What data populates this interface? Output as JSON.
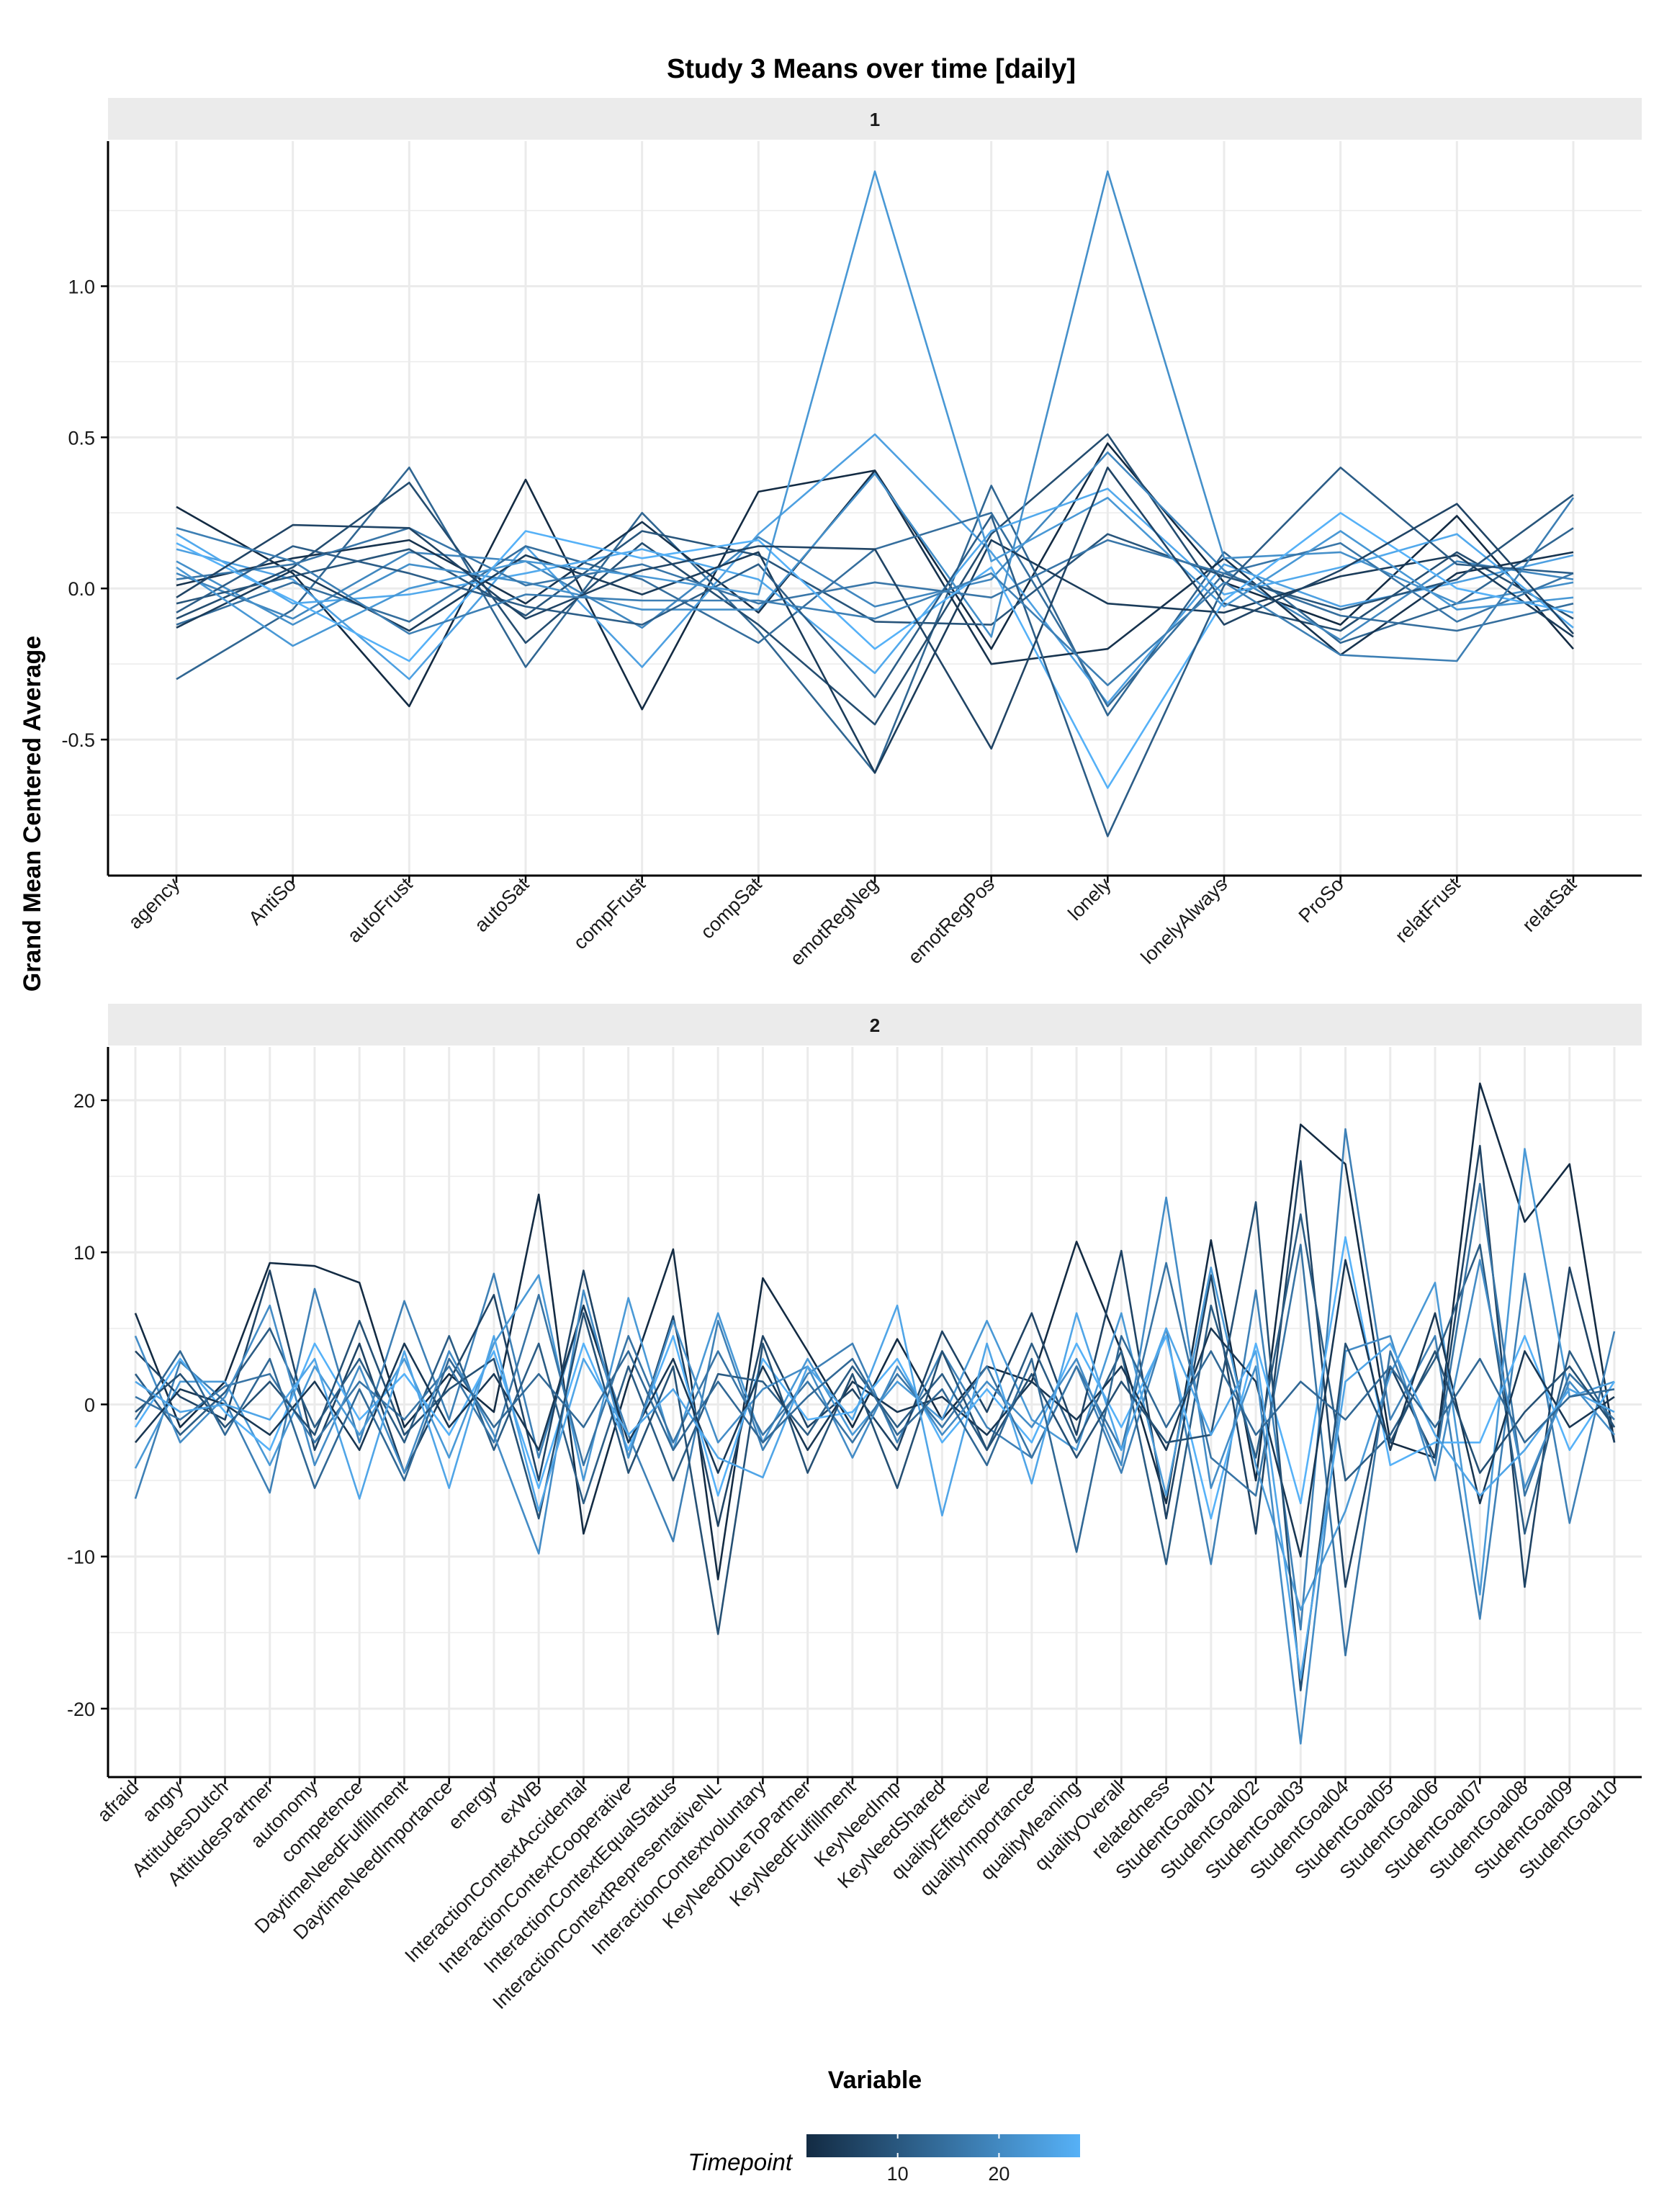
{
  "title": "Study 3 Means over time [daily]",
  "ylabel": "Grand Mean Centered Average",
  "xlabel": "Variable",
  "legend": {
    "title": "Timepoint",
    "ticks": [
      "10",
      "20"
    ],
    "tick_values": [
      10,
      20
    ],
    "range": [
      1,
      28
    ],
    "colors": [
      "#132b43",
      "#56b1f7"
    ],
    "placement": "bottom"
  },
  "colors": {
    "low": "#132b43",
    "high": "#56b1f7",
    "strip": "#ebebeb",
    "grid": "#ebebeb",
    "axis": "#000000"
  },
  "chart_data": [
    {
      "type": "line",
      "facet": "1",
      "ylim": [
        -0.95,
        1.48
      ],
      "yticks": [
        -0.5,
        0.0,
        0.5,
        1.0
      ],
      "ytick_labels": [
        "-0.5",
        "0.0",
        "0.5",
        "1.0"
      ],
      "grid": true,
      "categories": [
        "agency",
        "AntiSo",
        "autoFrust",
        "autoSat",
        "compFrust",
        "compSat",
        "emotRegNeg",
        "emotRegPos",
        "lonely",
        "lonelyAlways",
        "ProSo",
        "relatFrust",
        "relatSat"
      ],
      "series": [
        {
          "values": [
            0.27,
            0.05,
            -0.39,
            0.36,
            -0.4,
            0.32,
            0.39,
            -0.2,
            0.48,
            0.02,
            -0.12,
            0.24,
            -0.2
          ]
        },
        {
          "values": [
            -0.3,
            -0.07,
            0.4,
            -0.26,
            0.25,
            -0.14,
            -0.61,
            0.34,
            -0.42,
            0.12,
            -0.18,
            -0.05,
            0.2
          ]
        },
        {
          "values": [
            0.13,
            0.03,
            -0.3,
            0.14,
            -0.26,
            0.18,
            0.51,
            0.12,
            -0.38,
            0.08,
            -0.06,
            0.02,
            0.11
          ]
        },
        {
          "values": [
            -0.1,
            0.07,
            0.35,
            -0.18,
            0.15,
            -0.12,
            -0.45,
            0.18,
            0.51,
            -0.05,
            -0.14,
            0.12,
            -0.1
          ]
        },
        {
          "values": [
            0.05,
            -0.1,
            0.12,
            0.09,
            -0.13,
            0.17,
            -0.06,
            0.03,
            0.45,
            0.06,
            -0.17,
            0.09,
            0.03
          ]
        },
        {
          "values": [
            0.01,
            0.1,
            0.16,
            -0.05,
            0.22,
            -0.08,
            0.39,
            -0.25,
            -0.2,
            0.1,
            -0.22,
            0.05,
            0.12
          ]
        },
        {
          "values": [
            -0.12,
            0.02,
            -0.11,
            0.14,
            0.03,
            -0.18,
            0.13,
            0.25,
            -0.39,
            0.05,
            -0.09,
            -0.14,
            -0.05
          ]
        },
        {
          "values": [
            0.18,
            -0.05,
            -0.02,
            0.05,
            0.13,
            0.03,
            -0.28,
            0.19,
            0.33,
            -0.02,
            0.07,
            0.18,
            -0.13
          ]
        },
        {
          "values": [
            -0.05,
            0.04,
            0.13,
            -0.09,
            0.19,
            0.11,
            -0.11,
            -0.12,
            0.18,
            0.04,
            -0.07,
            0.03,
            0.31
          ]
        },
        {
          "values": [
            0.09,
            -0.12,
            0.08,
            0.02,
            -0.07,
            -0.07,
            0.38,
            -0.16,
            1.38,
            0.1,
            0.12,
            -0.05,
            0.02
          ]
        },
        {
          "values": [
            -0.13,
            0.06,
            -0.14,
            0.11,
            -0.02,
            0.12,
            -0.61,
            0.16,
            -0.05,
            -0.08,
            0.04,
            0.11,
            -0.16
          ]
        },
        {
          "values": [
            0.03,
            0.08,
            0.2,
            0.01,
            0.08,
            -0.05,
            0.02,
            -0.03,
            0.16,
            0.05,
            0.15,
            -0.11,
            0.05
          ]
        },
        {
          "values": [
            0.15,
            -0.04,
            -0.24,
            0.19,
            0.1,
            0.16,
            -0.2,
            0.07,
            -0.66,
            -0.04,
            0.25,
            0.0,
            -0.08
          ]
        },
        {
          "values": [
            -0.08,
            0.14,
            0.05,
            -0.06,
            -0.12,
            0.08,
            -0.36,
            0.24,
            -0.82,
            0.01,
            0.4,
            0.08,
            0.05
          ]
        },
        {
          "values": [
            0.07,
            -0.19,
            0.0,
            0.09,
            0.04,
            -0.02,
            1.38,
            0.09,
            0.3,
            -0.06,
            0.19,
            -0.07,
            -0.03
          ]
        },
        {
          "values": [
            -0.03,
            0.21,
            0.2,
            -0.1,
            0.06,
            0.14,
            0.13,
            -0.53,
            0.4,
            -0.12,
            0.06,
            0.28,
            -0.15
          ]
        },
        {
          "values": [
            0.2,
            0.09,
            -0.15,
            -0.02,
            -0.04,
            -0.04,
            -0.1,
            0.05,
            -0.32,
            0.02,
            -0.22,
            -0.24,
            0.3
          ]
        }
      ]
    },
    {
      "type": "line",
      "facet": "2",
      "ylim": [
        -24.5,
        23.5
      ],
      "yticks": [
        -20,
        -10,
        0,
        10,
        20
      ],
      "ytick_labels": [
        "-20",
        "-10",
        "0",
        "10",
        "20"
      ],
      "grid": true,
      "categories": [
        "afraid",
        "angry",
        "AttitudesDutch",
        "AttitudesPartner",
        "autonomy",
        "competence",
        "DaytimeNeedFulfillment",
        "DaytimeNeedImportance",
        "energy",
        "exWB",
        "InteractionContextAccidental",
        "InteractionContextCooperative",
        "InteractionContextEqualStatus",
        "InteractionContextRepresentativeNL",
        "InteractionContextvoluntary",
        "KeyNeedDueToPartner",
        "KeyNeedFulfillment",
        "KeyNeedImp",
        "KeyNeedShared",
        "qualityEffective",
        "qualityImportance",
        "qualityMeaning",
        "qualityOverall",
        "relatedness",
        "StudentGoal01",
        "StudentGoal02",
        "StudentGoal03",
        "StudentGoal04",
        "StudentGoal05",
        "StudentGoal06",
        "StudentGoal07",
        "StudentGoal08",
        "StudentGoal09",
        "StudentGoal10"
      ],
      "series": [
        {
          "values": [
            6.0,
            -1.5,
            1.5,
            9.3,
            9.1,
            8.0,
            -1.5,
            2.0,
            -0.5,
            13.8,
            -8.5,
            1.5,
            10.2,
            -11.5,
            8.3,
            3.5,
            -1.5,
            4.3,
            -1.0,
            2.5,
            1.5,
            10.7,
            3.5,
            -6.5,
            10.8,
            -5.0,
            18.4,
            15.8,
            -2.5,
            -3.5,
            21.1,
            12.0,
            15.8,
            -2.5
          ]
        },
        {
          "values": [
            -6.2,
            2.8,
            0.2,
            -5.8,
            7.6,
            -2.5,
            6.8,
            -1.0,
            8.6,
            -3.5,
            6.5,
            -2.0,
            -9.0,
            5.5,
            -3.0,
            2.0,
            4.0,
            -2.5,
            3.5,
            -1.5,
            -3.5,
            2.5,
            -4.5,
            5.0,
            -10.5,
            7.5,
            -14.8,
            18.1,
            -1.0,
            4.5,
            -14.1,
            8.6,
            -7.8,
            4.8
          ]
        },
        {
          "values": [
            3.5,
            0.5,
            -1.0,
            8.8,
            -3.0,
            4.0,
            -4.5,
            1.5,
            7.2,
            -5.0,
            8.8,
            -3.5,
            5.8,
            -8.0,
            4.5,
            -1.5,
            1.0,
            -3.0,
            4.8,
            -0.5,
            6.0,
            -2.0,
            10.1,
            -7.5,
            8.5,
            -8.5,
            16.0,
            -12.0,
            2.5,
            -3.5,
            17.0,
            -12.0,
            9.0,
            -2.5
          ]
        },
        {
          "values": [
            -4.2,
            1.5,
            1.5,
            -4.0,
            2.5,
            -2.0,
            3.0,
            -3.5,
            4.0,
            8.5,
            -5.0,
            7.0,
            -3.0,
            6.0,
            -2.5,
            3.0,
            -2.0,
            1.5,
            -1.0,
            5.5,
            -1.0,
            -3.0,
            6.0,
            -6.0,
            9.0,
            -4.0,
            -13.5,
            -7.0,
            2.0,
            8.0,
            -12.5,
            16.8,
            0.5,
            1.5
          ]
        },
        {
          "values": [
            2.0,
            -2.0,
            0.8,
            5.0,
            -1.5,
            3.0,
            -2.5,
            4.5,
            -3.0,
            4.0,
            -6.5,
            2.5,
            -5.0,
            2.0,
            1.5,
            -2.0,
            2.5,
            -1.5,
            2.0,
            -3.0,
            4.0,
            -2.5,
            3.5,
            -10.5,
            6.5,
            -3.5,
            12.5,
            -5.0,
            -2.0,
            3.0,
            10.5,
            -8.5,
            3.5,
            -1.5
          ]
        },
        {
          "values": [
            -1.5,
            3.0,
            -0.5,
            -3.0,
            4.0,
            -1.0,
            2.0,
            -2.0,
            3.5,
            -5.5,
            4.0,
            -3.0,
            4.5,
            -6.0,
            3.0,
            -1.0,
            -0.5,
            3.0,
            -2.5,
            1.0,
            -2.5,
            4.0,
            -1.5,
            4.5,
            -7.5,
            4.0,
            -6.5,
            11.0,
            -4.0,
            -2.5,
            -2.5,
            4.5,
            -3.0,
            1.5
          ]
        },
        {
          "values": [
            0.5,
            -1.0,
            1.2,
            2.0,
            -2.5,
            1.5,
            -1.0,
            2.5,
            -2.5,
            7.2,
            -4.0,
            4.5,
            -2.5,
            3.5,
            -2.0,
            1.5,
            -2.5,
            2.0,
            -1.5,
            2.5,
            -3.5,
            2.5,
            -3.0,
            9.3,
            -3.5,
            -6.0,
            10.5,
            -16.5,
            3.5,
            -4.0,
            14.5,
            -6.0,
            2.0,
            -1.0
          ]
        },
        {
          "values": [
            -2.5,
            1.0,
            0.0,
            -2.0,
            1.5,
            -3.0,
            4.0,
            -1.5,
            2.0,
            -3.0,
            6.5,
            -2.5,
            3.0,
            -4.5,
            2.5,
            -3.0,
            1.5,
            -0.5,
            0.5,
            -2.0,
            1.5,
            -1.0,
            2.5,
            -3.0,
            5.0,
            1.5,
            -10.0,
            9.5,
            -3.0,
            6.0,
            -6.5,
            3.5,
            -1.5,
            0.5
          ]
        },
        {
          "values": [
            4.5,
            -2.5,
            0.5,
            6.5,
            -4.0,
            2.5,
            -4.5,
            3.5,
            -2.0,
            -9.8,
            7.5,
            -3.5,
            5.5,
            -2.5,
            1.0,
            2.5,
            -3.5,
            2.5,
            -2.0,
            1.5,
            -1.5,
            3.0,
            -4.0,
            13.6,
            -5.5,
            2.5,
            -22.3,
            3.5,
            4.5,
            -5.0,
            9.5,
            -5.5,
            1.5,
            -2.0
          ]
        },
        {
          "values": [
            -0.5,
            2.0,
            -1.5,
            1.5,
            -2.0,
            5.5,
            -2.0,
            1.0,
            3.0,
            -7.5,
            6.0,
            -4.5,
            2.5,
            -15.1,
            4.0,
            -4.5,
            2.0,
            -5.5,
            3.5,
            -3.0,
            2.0,
            -3.5,
            1.5,
            -2.5,
            -2.0,
            13.3,
            -18.8,
            4.0,
            -2.5,
            3.5,
            -4.5,
            -0.5,
            2.5,
            -1.5
          ]
        },
        {
          "values": [
            1.5,
            -0.5,
            0.0,
            -1.0,
            3.0,
            -6.2,
            3.5,
            -5.5,
            4.5,
            -7.0,
            3.0,
            -2.0,
            1.0,
            -3.5,
            -4.8,
            2.5,
            -1.0,
            6.5,
            -7.3,
            4.0,
            -5.2,
            6.0,
            -3.0,
            5.0,
            -2.0,
            3.5,
            -18.0,
            1.5,
            4.0,
            -2.0,
            -6.0,
            -3.0,
            1.0,
            -0.5
          ]
        },
        {
          "values": [
            -1.0,
            3.5,
            -2.0,
            3.0,
            -5.5,
            1.0,
            -5.0,
            3.0,
            -1.5,
            2.0,
            -1.5,
            3.5,
            -3.0,
            1.5,
            -2.5,
            0.5,
            3.0,
            -2.0,
            1.0,
            -4.0,
            3.0,
            -9.7,
            4.5,
            -1.5,
            3.5,
            -2.0,
            1.5,
            -1.0,
            2.5,
            -1.5,
            3.0,
            -2.5,
            0.5,
            1.0
          ]
        }
      ]
    }
  ]
}
